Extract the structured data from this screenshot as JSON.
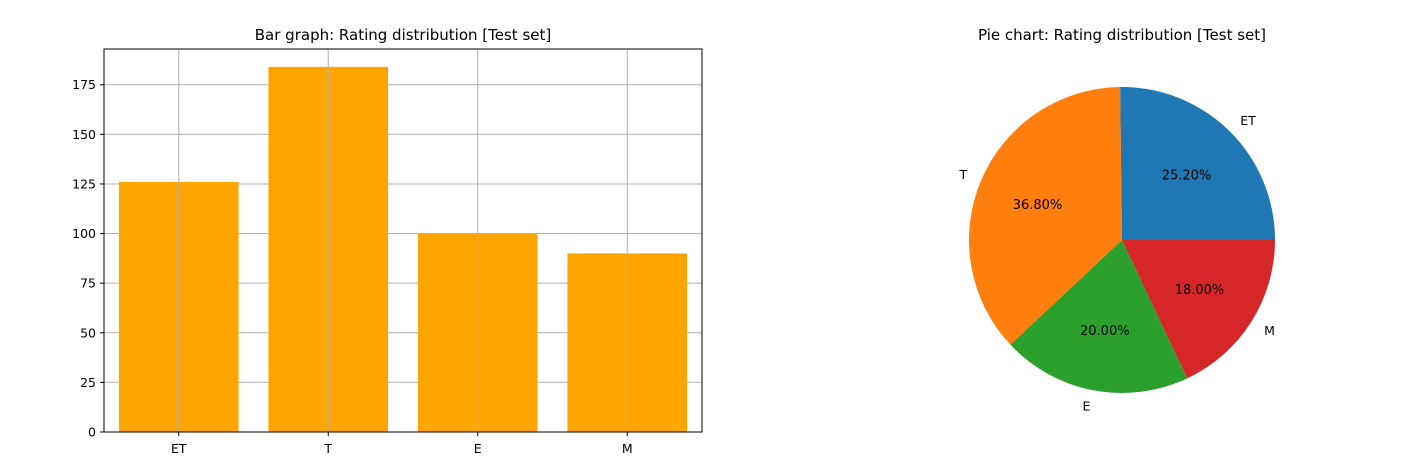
{
  "chart_data": [
    {
      "type": "bar",
      "title": "Bar graph: Rating distribution [Test set]",
      "categories": [
        "ET",
        "T",
        "E",
        "M"
      ],
      "values": [
        126,
        184,
        100,
        90
      ],
      "ylim": [
        0,
        193
      ],
      "yticks": [
        "0",
        "25",
        "50",
        "75",
        "100",
        "125",
        "150",
        "175"
      ],
      "grid": true,
      "bar_color": "#FFA500",
      "xlabel": "",
      "ylabel": ""
    },
    {
      "type": "pie",
      "title": "Pie chart:  Rating distribution [Test set]",
      "labels": [
        "ET",
        "T",
        "E",
        "M"
      ],
      "values": [
        25.2,
        36.8,
        20.0,
        18.0
      ],
      "percent_labels": [
        "25.20%",
        "36.80%",
        "20.00%",
        "18.00%"
      ],
      "colors": [
        "#1F77B4",
        "#FF7F0E",
        "#2CA02C",
        "#D62728"
      ]
    }
  ]
}
